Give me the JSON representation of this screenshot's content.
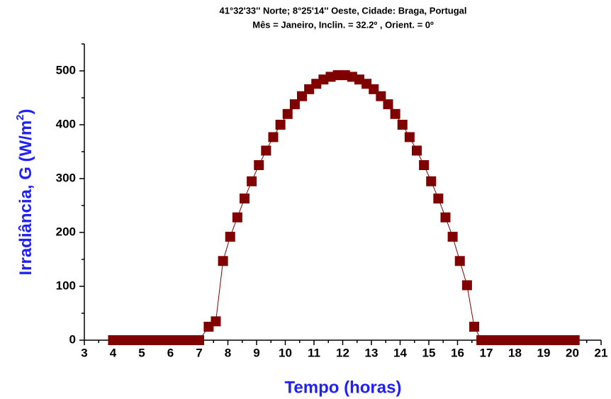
{
  "chart_data": {
    "type": "scatter",
    "title": [
      "41°32'33'' Norte; 8°25'14'' Oeste, Cidade: Braga, Portugal",
      "Mês = Janeiro, Inclin. = 32.2º , Orient. = 0º"
    ],
    "xlabel": "Tempo (horas)",
    "ylabel": "Irradiância, G (W/m",
    "ylabel_sup": "2",
    "ylabel_end": ")",
    "xlim": [
      3,
      21
    ],
    "ylim": [
      0,
      550
    ],
    "xticks": [
      3,
      4,
      5,
      6,
      7,
      8,
      9,
      10,
      11,
      12,
      13,
      14,
      15,
      16,
      17,
      18,
      19,
      20,
      21
    ],
    "yticks": [
      0,
      100,
      200,
      300,
      400,
      500
    ],
    "series": [
      {
        "name": "G",
        "color": "#800000",
        "x": [
          4,
          4.25,
          4.5,
          4.75,
          5,
          5.25,
          5.5,
          5.75,
          6,
          6.25,
          6.5,
          6.75,
          7,
          7.33,
          7.58,
          7.83,
          8.08,
          8.33,
          8.58,
          8.83,
          9.08,
          9.33,
          9.58,
          9.83,
          10.08,
          10.33,
          10.58,
          10.83,
          11.08,
          11.33,
          11.58,
          11.83,
          12.08,
          12.33,
          12.58,
          12.83,
          13.08,
          13.33,
          13.58,
          13.83,
          14.08,
          14.33,
          14.58,
          14.83,
          15.08,
          15.33,
          15.58,
          15.83,
          16.08,
          16.33,
          16.58,
          16.83,
          17.08,
          17.33,
          17.58,
          17.83,
          18.08,
          18.33,
          18.58,
          18.83,
          19.08,
          19.33,
          19.58,
          19.83,
          20.08
        ],
        "values": [
          0,
          0,
          0,
          0,
          0,
          0,
          0,
          0,
          0,
          0,
          0,
          0,
          0,
          25,
          35,
          147,
          192,
          228,
          263,
          295,
          325,
          352,
          377,
          400,
          420,
          438,
          453,
          466,
          476,
          484,
          489,
          492,
          492,
          489,
          484,
          476,
          466,
          453,
          438,
          420,
          400,
          377,
          352,
          325,
          295,
          263,
          228,
          192,
          147,
          102,
          25,
          0,
          0,
          0,
          0,
          0,
          0,
          0,
          0,
          0,
          0,
          0,
          0,
          0,
          0
        ]
      }
    ]
  }
}
